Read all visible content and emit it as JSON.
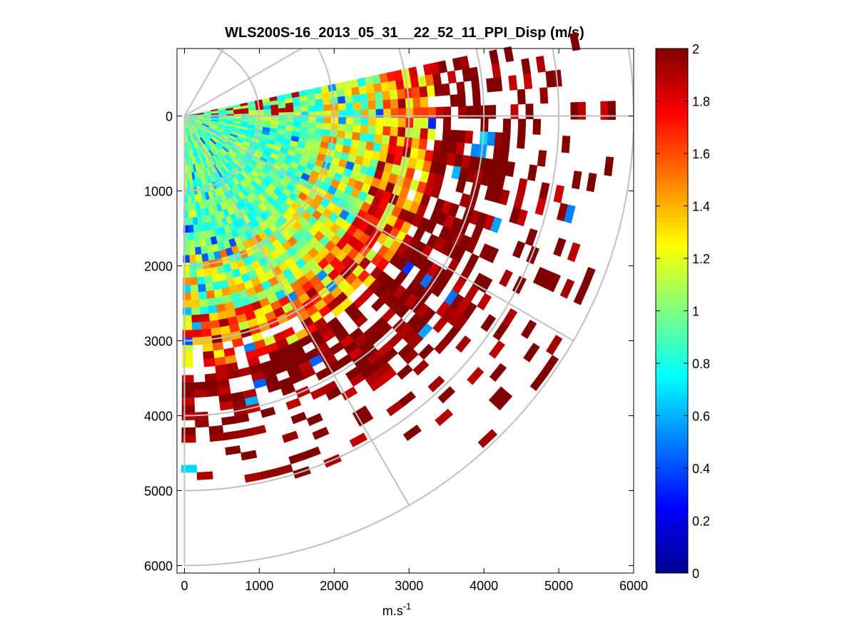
{
  "chart_data": {
    "type": "heatmap",
    "subtype": "polar-ppi-sector",
    "title": "WLS200S-16_2013_05_31__22_52_11_PPI_Disp (m/s)",
    "xlabel": "m.s",
    "xlabel_superscript": "-1",
    "ylabel": "",
    "xlim": [
      -100,
      6000
    ],
    "ylim": [
      -900,
      6100
    ],
    "y_axis_reversed": true,
    "x_ticks": [
      0,
      1000,
      2000,
      3000,
      4000,
      5000,
      6000
    ],
    "y_ticks": [
      0,
      1000,
      2000,
      3000,
      4000,
      5000,
      6000
    ],
    "x_tick_labels": [
      "0",
      "1000",
      "2000",
      "3000",
      "4000",
      "5000",
      "6000"
    ],
    "y_tick_labels": [
      "0",
      "1000",
      "2000",
      "3000",
      "4000",
      "5000",
      "6000"
    ],
    "polar_grid": {
      "range_rings_m": [
        1000,
        2000,
        3000,
        4000,
        5000,
        6000
      ],
      "spokes_deg": [
        -60,
        -30,
        0,
        30,
        60,
        90
      ]
    },
    "sector": {
      "azimuth_range_deg": [
        -12,
        90
      ],
      "range_min_m": 0,
      "range_max_m": 6000,
      "range_gate_m": 100,
      "azimuth_step_deg": 2.5
    },
    "data_summary": [
      {
        "range_band_m": [
          0,
          2000
        ],
        "typical_value": 0.95,
        "note": "mostly cyan-green-yellow"
      },
      {
        "range_band_m": [
          2000,
          3000
        ],
        "typical_value": 1.3,
        "note": "yellow-orange with red, blue patches"
      },
      {
        "range_band_m": [
          3000,
          4000
        ],
        "typical_value": 1.85,
        "note": "red to dark red"
      },
      {
        "range_band_m": [
          4000,
          6000
        ],
        "typical_value": 2.0,
        "note": "sparse dark red cells"
      }
    ],
    "colorbar": {
      "colormap": "jet",
      "clim": [
        0,
        2
      ],
      "ticks": [
        0,
        0.2,
        0.4,
        0.6,
        0.8,
        1,
        1.2,
        1.4,
        1.6,
        1.8,
        2
      ],
      "tick_labels": [
        "0",
        "0.2",
        "0.4",
        "0.6",
        "0.8",
        "1",
        "1.2",
        "1.4",
        "1.6",
        "1.8",
        "2"
      ]
    }
  }
}
